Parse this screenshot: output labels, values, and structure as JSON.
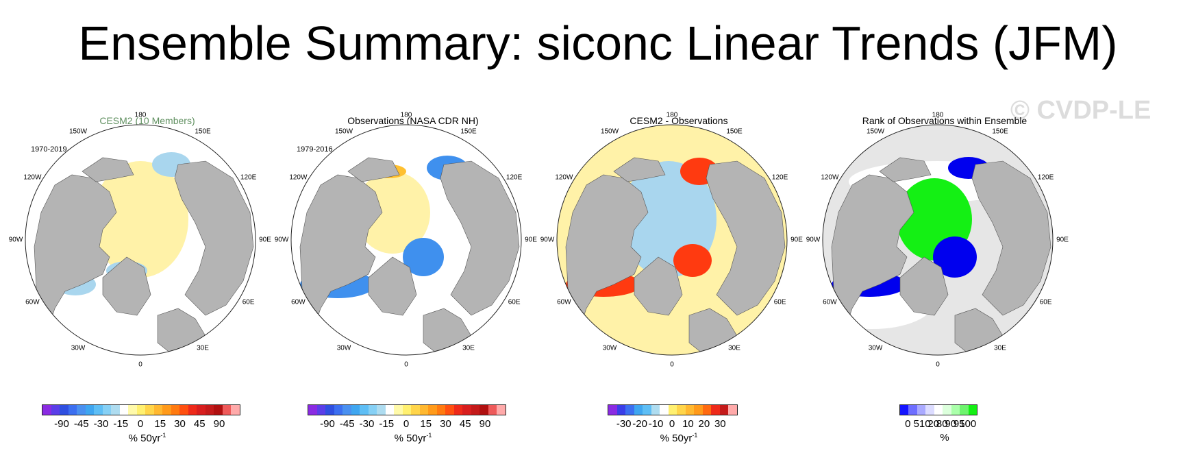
{
  "title": "Ensemble Summary: siconc Linear Trends (JFM)",
  "watermark": "© CVDP-LE",
  "longitude_labels": [
    "180",
    "150E",
    "120E",
    "90E",
    "60E",
    "30E",
    "0",
    "30W",
    "60W",
    "90W",
    "120W",
    "150W"
  ],
  "panels": [
    {
      "title": "CESM2 (10 Members)",
      "period": "1970-2019",
      "cb_colors": [
        "#8a2be2",
        "#5a3ee8",
        "#2f4fe0",
        "#3c6ff0",
        "#4a90f0",
        "#3fa6f0",
        "#5ebef5",
        "#86d0f5",
        "#aedcf0",
        "#ffffff",
        "#fffaaa",
        "#fff070",
        "#ffd54a",
        "#ffb830",
        "#ff9a1a",
        "#ff7a10",
        "#ff5010",
        "#ee2a1a",
        "#d81e1e",
        "#c41a1a",
        "#b01010",
        "#ee5a5a",
        "#ffaaaa"
      ],
      "cb_labels": [
        "-90",
        "-45",
        "-30",
        "-15",
        "0",
        "15",
        "30",
        "45",
        "90"
      ],
      "cb_unit": "% 50yr",
      "cb_unit_sup": "-1",
      "data_colors": {
        "positive": "#fff2a8",
        "negative": "#a9d6ee"
      }
    },
    {
      "title": "Observations (NASA CDR NH)",
      "period": "1979-2016",
      "cb_colors": [
        "#8a2be2",
        "#5a3ee8",
        "#2f4fe0",
        "#3c6ff0",
        "#4a90f0",
        "#3fa6f0",
        "#5ebef5",
        "#86d0f5",
        "#aedcf0",
        "#ffffff",
        "#fffaaa",
        "#fff070",
        "#ffd54a",
        "#ffb830",
        "#ff9a1a",
        "#ff7a10",
        "#ff5010",
        "#ee2a1a",
        "#d81e1e",
        "#c41a1a",
        "#b01010",
        "#ee5a5a",
        "#ffaaaa"
      ],
      "cb_labels": [
        "-90",
        "-45",
        "-30",
        "-15",
        "0",
        "15",
        "30",
        "45",
        "90"
      ],
      "cb_unit": "% 50yr",
      "cb_unit_sup": "-1",
      "data_colors": {
        "positive": "#fff2a8",
        "negative": "#3f90ee"
      }
    },
    {
      "title": "CESM2 - Observations",
      "period": "",
      "cb_colors": [
        "#8a2be2",
        "#3a3ee8",
        "#3c6ff0",
        "#3fa6f0",
        "#5ebef5",
        "#aedcf0",
        "#ffffff",
        "#fff070",
        "#ffd54a",
        "#ffb830",
        "#ff9a1a",
        "#ff6a10",
        "#ee2a1a",
        "#c41a1a",
        "#ffaaaa"
      ],
      "cb_labels": [
        "-30",
        "-20",
        "-10",
        "0",
        "10",
        "20",
        "30"
      ],
      "cb_unit": "% 50yr",
      "cb_unit_sup": "-1",
      "data_colors": {
        "positive": "#ff3a10",
        "negative": "#a9d6ee",
        "background": "#fff2a8"
      }
    },
    {
      "title": "Rank of Observations within Ensemble",
      "period": "",
      "cb_colors": [
        "#1414ff",
        "#6e6eff",
        "#aaaaff",
        "#dcdcff",
        "#ffffff",
        "#dcffdc",
        "#aaffaa",
        "#6ef46e",
        "#14f014"
      ],
      "cb_labels": [
        "0",
        "5",
        "10",
        "20",
        "80",
        "90",
        "95",
        "100"
      ],
      "cb_unit": "%",
      "cb_unit_sup": "",
      "data_colors": {
        "low": "#0000ee",
        "high": "#14f014",
        "background": "#e6e6e6"
      }
    }
  ]
}
